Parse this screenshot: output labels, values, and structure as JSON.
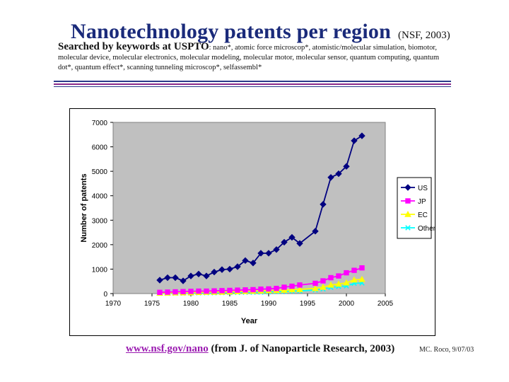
{
  "header": {
    "title": "Nanotechnology patents per region",
    "source": "(NSF, 2003)",
    "search_prefix": "Searched by keywords at USPTO",
    "keywords": ": nano*, atomic force microscop*, atomistic/molecular simulation, biomotor, molecular device, molecular electronics, molecular modeling, molecular motor, molecular sensor, quantum computing, quantum dot*, quantum effect*, scanning tunneling microscop*, selfassembl*"
  },
  "footer": {
    "link": "www.nsf.gov/nano",
    "citation": " (from J. of Nanoparticle Research, 2003)",
    "credit": "MC. Roco, 9/07/03"
  },
  "colors": {
    "plot_bg": "#c0c0c0",
    "US": "#000080",
    "JP": "#ff00ff",
    "EC": "#ffff00",
    "Others": "#00ffff"
  },
  "chart_data": {
    "type": "line",
    "title": "",
    "xlabel": "Year",
    "ylabel": "Number of patents",
    "xlim": [
      1970,
      2005
    ],
    "ylim": [
      0,
      7000
    ],
    "xticks": [
      1970,
      1975,
      1980,
      1985,
      1990,
      1995,
      2000,
      2005
    ],
    "yticks": [
      0,
      1000,
      2000,
      3000,
      4000,
      5000,
      6000,
      7000
    ],
    "legend_position": "right",
    "x": [
      1976,
      1977,
      1978,
      1979,
      1980,
      1981,
      1982,
      1983,
      1984,
      1985,
      1986,
      1987,
      1988,
      1989,
      1990,
      1991,
      1992,
      1993,
      1994,
      1995,
      1996,
      1997,
      1998,
      1999,
      2000,
      2001,
      2002
    ],
    "series": [
      {
        "name": "US",
        "marker": "diamond",
        "values": [
          550,
          650,
          650,
          520,
          720,
          800,
          720,
          880,
          980,
          1000,
          1100,
          1350,
          1250,
          1650,
          1650,
          1800,
          2100,
          2300,
          2050,
          null,
          2550,
          3650,
          4750,
          4900,
          5200,
          6250,
          6450
        ]
      },
      {
        "name": "JP",
        "marker": "square",
        "values": [
          50,
          60,
          70,
          80,
          90,
          100,
          100,
          110,
          120,
          130,
          140,
          150,
          160,
          180,
          190,
          210,
          260,
          300,
          350,
          null,
          420,
          520,
          650,
          720,
          850,
          950,
          1050
        ]
      },
      {
        "name": "EC",
        "marker": "triangle",
        "values": [
          20,
          25,
          30,
          35,
          40,
          50,
          55,
          60,
          60,
          70,
          80,
          90,
          100,
          110,
          120,
          130,
          140,
          160,
          170,
          null,
          210,
          260,
          350,
          390,
          440,
          560,
          580
        ]
      },
      {
        "name": "Others",
        "marker": "x",
        "values": [
          10,
          12,
          15,
          18,
          20,
          25,
          30,
          30,
          35,
          40,
          45,
          50,
          55,
          60,
          70,
          80,
          90,
          100,
          110,
          null,
          150,
          190,
          250,
          290,
          310,
          420,
          430
        ]
      }
    ]
  }
}
